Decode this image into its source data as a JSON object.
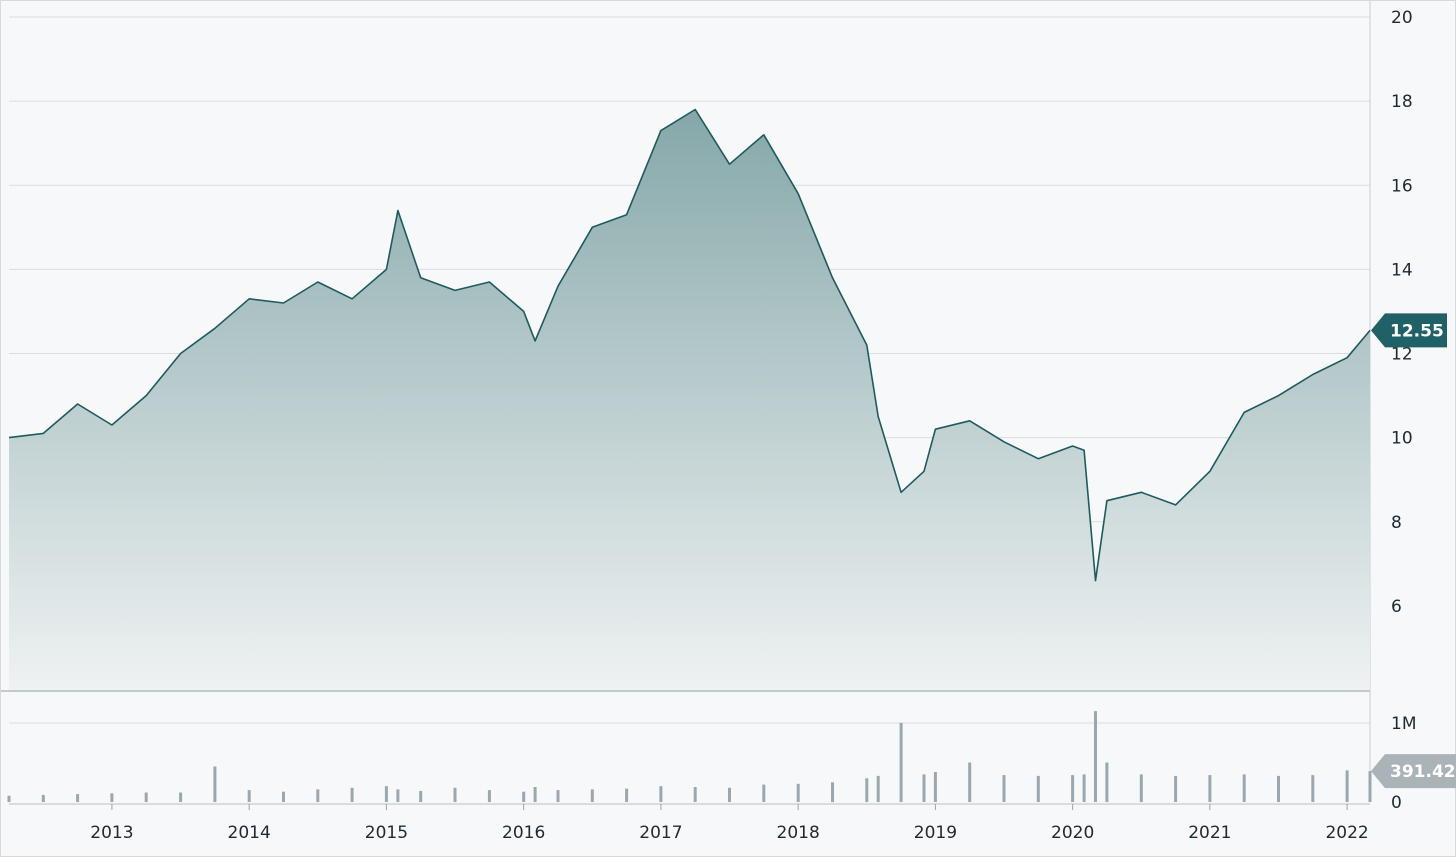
{
  "chart_data": [
    {
      "type": "area",
      "title": "",
      "xlabel": "",
      "ylabel": "",
      "x_ticks": [
        "2013",
        "2014",
        "2015",
        "2016",
        "2017",
        "2018",
        "2019",
        "2020",
        "2021",
        "2022"
      ],
      "y_ticks": [
        "20",
        "18",
        "16",
        "14",
        "12",
        "10",
        "8",
        "6"
      ],
      "ylim": [
        4,
        20
      ],
      "xlim": [
        "2012-04",
        "2022-03"
      ],
      "grid": true,
      "last_value_label": "12.55",
      "colors": {
        "line": "#1f5a5e",
        "badge": "#1f6166",
        "fill_top": "#7fa3a4",
        "fill_bottom": "#eef1f2"
      },
      "x": [
        "2012-04",
        "2012-07",
        "2012-10",
        "2013-01",
        "2013-04",
        "2013-07",
        "2013-10",
        "2014-01",
        "2014-04",
        "2014-07",
        "2014-10",
        "2015-01",
        "2015-02",
        "2015-04",
        "2015-07",
        "2015-10",
        "2016-01",
        "2016-02",
        "2016-04",
        "2016-07",
        "2016-10",
        "2017-01",
        "2017-04",
        "2017-07",
        "2017-10",
        "2018-01",
        "2018-04",
        "2018-07",
        "2018-08",
        "2018-10",
        "2018-12",
        "2019-01",
        "2019-04",
        "2019-07",
        "2019-10",
        "2020-01",
        "2020-02",
        "2020-03",
        "2020-04",
        "2020-07",
        "2020-10",
        "2021-01",
        "2021-04",
        "2021-07",
        "2021-10",
        "2022-01",
        "2022-03"
      ],
      "series": [
        {
          "values": [
            10.0,
            10.1,
            10.8,
            10.3,
            11.0,
            12.0,
            12.6,
            13.3,
            13.2,
            13.7,
            13.3,
            14.0,
            15.4,
            13.8,
            13.5,
            13.7,
            13.0,
            12.3,
            13.6,
            15.0,
            15.3,
            17.3,
            17.8,
            16.5,
            17.2,
            15.8,
            13.8,
            12.2,
            10.5,
            8.7,
            9.2,
            10.2,
            10.4,
            9.9,
            9.5,
            9.8,
            9.7,
            6.6,
            8.5,
            8.7,
            8.4,
            9.2,
            10.6,
            11.0,
            11.5,
            11.9,
            12.55
          ]
        }
      ]
    },
    {
      "type": "bar",
      "title": "",
      "y_ticks": [
        "1M",
        "0"
      ],
      "ylim": [
        0,
        1200000
      ],
      "last_value_label": "391.42K",
      "colors": {
        "bar": "#9aa7ae",
        "badge": "#aab3b8"
      },
      "x": [
        "2012-04",
        "2012-07",
        "2012-10",
        "2013-01",
        "2013-04",
        "2013-07",
        "2013-10",
        "2014-01",
        "2014-04",
        "2014-07",
        "2014-10",
        "2015-01",
        "2015-02",
        "2015-04",
        "2015-07",
        "2015-10",
        "2016-01",
        "2016-02",
        "2016-04",
        "2016-07",
        "2016-10",
        "2017-01",
        "2017-04",
        "2017-07",
        "2017-10",
        "2018-01",
        "2018-04",
        "2018-07",
        "2018-08",
        "2018-10",
        "2018-12",
        "2019-01",
        "2019-04",
        "2019-07",
        "2019-10",
        "2020-01",
        "2020-02",
        "2020-03",
        "2020-04",
        "2020-07",
        "2020-10",
        "2021-01",
        "2021-04",
        "2021-07",
        "2021-10",
        "2022-01",
        "2022-03"
      ],
      "values": [
        80000,
        90000,
        100000,
        110000,
        120000,
        120000,
        450000,
        150000,
        130000,
        160000,
        180000,
        200000,
        160000,
        140000,
        180000,
        150000,
        130000,
        190000,
        150000,
        160000,
        170000,
        200000,
        190000,
        180000,
        220000,
        230000,
        250000,
        300000,
        330000,
        1000000,
        350000,
        380000,
        500000,
        340000,
        330000,
        340000,
        350000,
        1150000,
        500000,
        350000,
        330000,
        340000,
        350000,
        330000,
        340000,
        400000,
        391420
      ]
    }
  ]
}
